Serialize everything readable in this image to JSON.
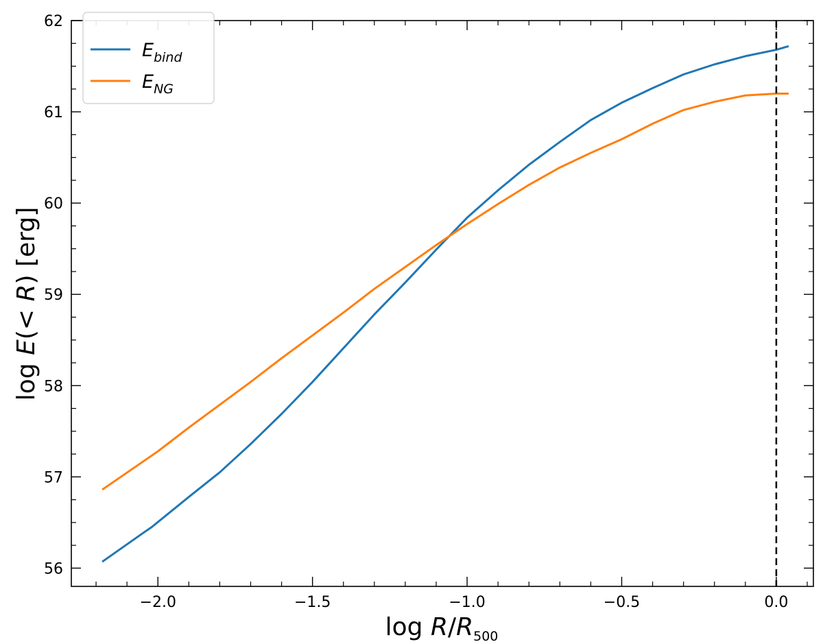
{
  "chart_data": {
    "type": "line",
    "xlabel": {
      "prefix": "log ",
      "italic": "R",
      "sep": "/",
      "italic2": "R",
      "sub": "500"
    },
    "ylabel": {
      "prefix": "log ",
      "italic": "E",
      "mid": "(< ",
      "italic2": "R",
      "suffix": ") [erg]"
    },
    "xlim": [
      -2.28,
      0.12
    ],
    "ylim": [
      55.8,
      62.0
    ],
    "xticks": [
      -2.0,
      -1.5,
      -1.0,
      -0.5,
      0.0
    ],
    "xtick_labels": [
      "−2.0",
      "−1.5",
      "−1.0",
      "−0.5",
      "0.0"
    ],
    "yticks": [
      56,
      57,
      58,
      59,
      60,
      61,
      62
    ],
    "ytick_labels": [
      "56",
      "57",
      "58",
      "59",
      "60",
      "61",
      "62"
    ],
    "x_minor_step": 0.1,
    "y_minor_step": 0.25,
    "grid": false,
    "legend_position": "top-left",
    "vline": {
      "x": 0.0,
      "style": "dashed",
      "color": "#000000"
    },
    "series": [
      {
        "name": "E",
        "name_sub": "bind",
        "color": "#1f77b4",
        "x": [
          -2.18,
          -2.05,
          -2.02,
          -1.9,
          -1.8,
          -1.7,
          -1.6,
          -1.5,
          -1.4,
          -1.3,
          -1.2,
          -1.1,
          -1.0,
          -0.9,
          -0.8,
          -0.7,
          -0.6,
          -0.5,
          -0.4,
          -0.3,
          -0.2,
          -0.1,
          0.0,
          0.04
        ],
        "values": [
          56.07,
          56.38,
          56.45,
          56.78,
          57.05,
          57.36,
          57.69,
          58.04,
          58.41,
          58.78,
          59.13,
          59.49,
          59.84,
          60.14,
          60.42,
          60.67,
          60.91,
          61.1,
          61.26,
          61.41,
          61.52,
          61.61,
          61.68,
          61.72
        ]
      },
      {
        "name": "E",
        "name_sub": "NG",
        "color": "#ff7f0e",
        "x": [
          -2.18,
          -2.0,
          -1.9,
          -1.8,
          -1.7,
          -1.6,
          -1.5,
          -1.4,
          -1.3,
          -1.2,
          -1.1,
          -1.0,
          -0.9,
          -0.8,
          -0.7,
          -0.6,
          -0.5,
          -0.4,
          -0.3,
          -0.2,
          -0.1,
          0.0,
          0.04
        ],
        "values": [
          56.86,
          57.28,
          57.54,
          57.79,
          58.04,
          58.3,
          58.55,
          58.8,
          59.06,
          59.3,
          59.54,
          59.77,
          59.99,
          60.2,
          60.39,
          60.55,
          60.7,
          60.87,
          61.02,
          61.11,
          61.18,
          61.2,
          61.2
        ]
      }
    ]
  }
}
